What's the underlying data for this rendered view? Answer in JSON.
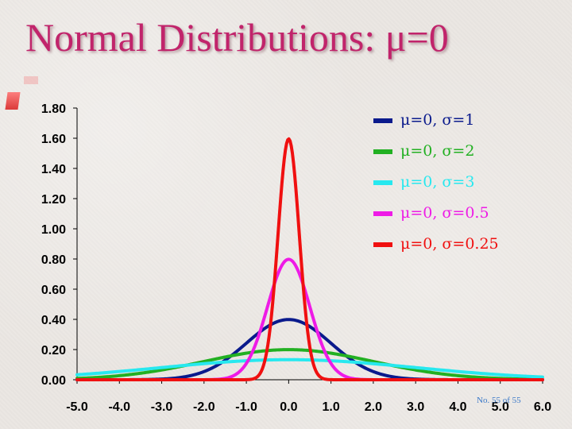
{
  "slide": {
    "title": "Normal Distributions:  μ=0",
    "footnote": "No. 55 of 55"
  },
  "chart_data": {
    "type": "line",
    "title": "",
    "xlabel": "",
    "ylabel": "",
    "xlim": [
      -5.0,
      6.0
    ],
    "ylim": [
      0.0,
      1.8
    ],
    "x_ticks": [
      "-5.0",
      "-4.0",
      "-3.0",
      "-2.0",
      "-1.0",
      "0.0",
      "1.0",
      "2.0",
      "3.0",
      "4.0",
      "5.0",
      "6.0"
    ],
    "y_ticks": [
      "0.00",
      "0.20",
      "0.40",
      "0.60",
      "0.80",
      "1.00",
      "1.20",
      "1.40",
      "1.60",
      "1.80"
    ],
    "legend_position": "top-right",
    "grid": false,
    "series": [
      {
        "name": "μ=0, σ=1",
        "mu": 0,
        "sigma": 1,
        "color": "#0a1a8c",
        "x": [
          -3.0,
          -2.5,
          -2.0,
          -1.5,
          -1.0,
          -0.5,
          0.0,
          0.5,
          1.0,
          1.5,
          2.0,
          2.5,
          3.0
        ],
        "values": [
          0.004,
          0.018,
          0.054,
          0.13,
          0.242,
          0.352,
          0.399,
          0.352,
          0.242,
          0.13,
          0.054,
          0.018,
          0.004
        ]
      },
      {
        "name": "μ=0, σ=2",
        "mu": 0,
        "sigma": 2,
        "color": "#22b022",
        "x": [
          -5.0,
          -4.0,
          -3.0,
          -2.0,
          -1.0,
          0.0,
          1.0,
          2.0,
          3.0,
          4.0,
          5.0,
          6.0
        ],
        "values": [
          0.009,
          0.027,
          0.065,
          0.121,
          0.176,
          0.199,
          0.176,
          0.121,
          0.065,
          0.027,
          0.009,
          0.002
        ]
      },
      {
        "name": "μ=0, σ=3",
        "mu": 0,
        "sigma": 3,
        "color": "#27e8ef",
        "x": [
          -5.0,
          -4.0,
          -3.0,
          -2.0,
          -1.0,
          0.0,
          1.0,
          2.0,
          3.0,
          4.0,
          5.0,
          6.0
        ],
        "values": [
          0.033,
          0.055,
          0.081,
          0.106,
          0.126,
          0.133,
          0.126,
          0.106,
          0.081,
          0.055,
          0.033,
          0.018
        ]
      },
      {
        "name": "μ=0, σ=0.5",
        "mu": 0,
        "sigma": 0.5,
        "color": "#ee1be6",
        "x": [
          -1.5,
          -1.0,
          -0.75,
          -0.5,
          -0.25,
          0.0,
          0.25,
          0.5,
          0.75,
          1.0,
          1.5
        ],
        "values": [
          0.009,
          0.108,
          0.259,
          0.484,
          0.704,
          0.798,
          0.704,
          0.484,
          0.259,
          0.108,
          0.009
        ]
      },
      {
        "name": "μ=0, σ=0.25",
        "mu": 0,
        "sigma": 0.25,
        "color": "#f01010",
        "x": [
          -0.75,
          -0.5,
          -0.375,
          -0.25,
          -0.125,
          0.0,
          0.125,
          0.25,
          0.375,
          0.5,
          0.75
        ],
        "values": [
          0.018,
          0.216,
          0.518,
          0.968,
          1.408,
          1.596,
          1.408,
          0.968,
          0.518,
          0.216,
          0.018
        ]
      }
    ]
  }
}
